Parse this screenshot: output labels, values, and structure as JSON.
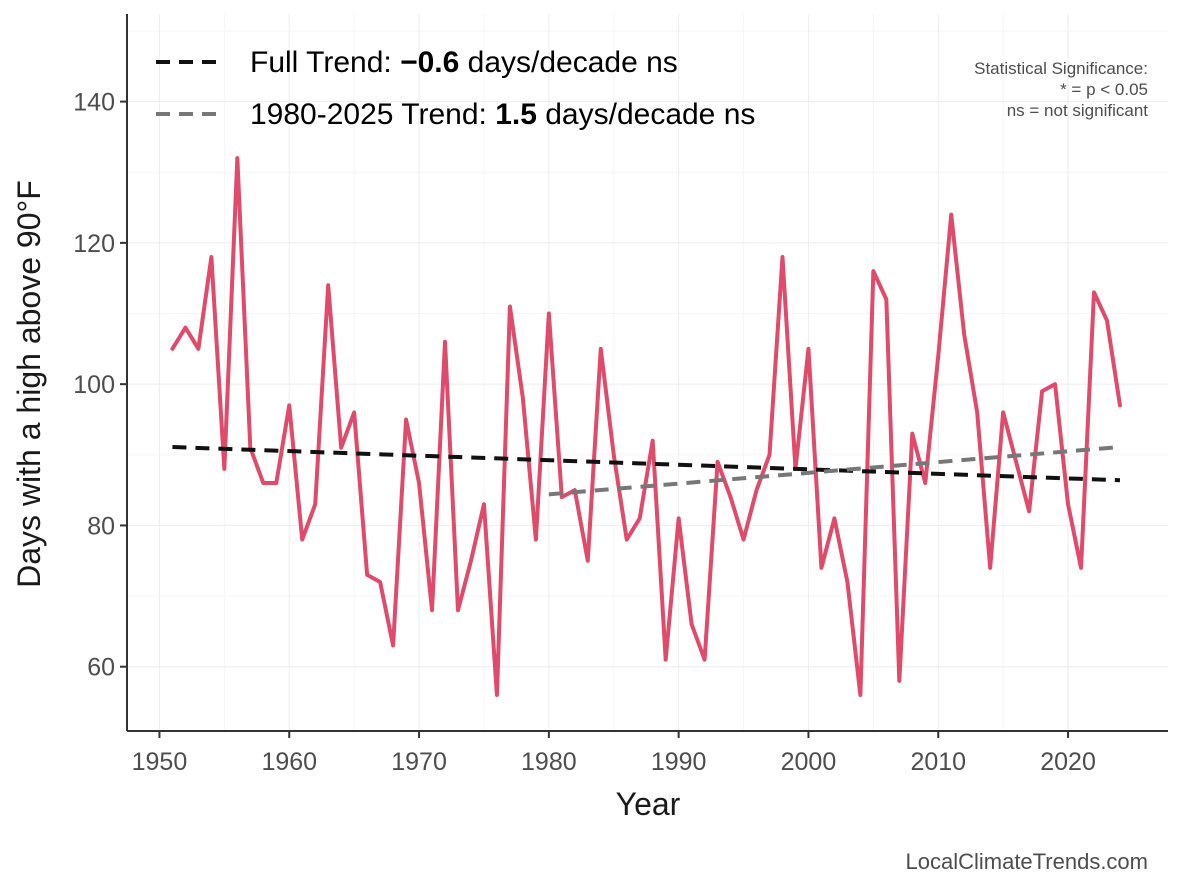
{
  "chart_data": {
    "type": "line",
    "xlabel": "Year",
    "ylabel": "Days with a high above 90°F",
    "xlim": [
      1947.5,
      2027.7
    ],
    "ylim": [
      50.9,
      152.4
    ],
    "x_ticks": [
      1950,
      1960,
      1970,
      1980,
      1990,
      2000,
      2010,
      2020
    ],
    "y_ticks": [
      60,
      80,
      100,
      120,
      140
    ],
    "grid": true,
    "legend_position": "top-left",
    "series": [
      {
        "color": "#e04a6b",
        "x": [
          1951,
          1952,
          1953,
          1954,
          1955,
          1956,
          1957,
          1958,
          1959,
          1960,
          1961,
          1962,
          1963,
          1964,
          1965,
          1966,
          1967,
          1968,
          1969,
          1970,
          1971,
          1972,
          1973,
          1974,
          1975,
          1976,
          1977,
          1978,
          1979,
          1980,
          1981,
          1982,
          1983,
          1984,
          1985,
          1986,
          1987,
          1988,
          1989,
          1990,
          1991,
          1992,
          1993,
          1994,
          1995,
          1996,
          1997,
          1998,
          1999,
          2000,
          2001,
          2002,
          2003,
          2004,
          2005,
          2006,
          2007,
          2008,
          2009,
          2010,
          2011,
          2012,
          2013,
          2014,
          2015,
          2016,
          2017,
          2018,
          2019,
          2020,
          2021,
          2022,
          2023,
          2024
        ],
        "values": [
          105,
          108,
          105,
          118,
          88,
          132,
          91,
          86,
          86,
          97,
          78,
          83,
          114,
          91,
          96,
          73,
          72,
          63,
          95,
          86,
          68,
          106,
          68,
          75,
          83,
          56,
          111,
          98,
          78,
          110,
          84,
          85,
          75,
          105,
          90,
          78,
          81,
          92,
          61,
          81,
          66,
          61,
          89,
          84,
          78,
          85,
          90,
          118,
          88,
          105,
          74,
          81,
          72,
          56,
          116,
          112,
          58,
          93,
          86,
          104,
          124,
          107,
          96,
          74,
          96,
          89,
          82,
          99,
          100,
          83,
          74,
          113,
          109,
          97
        ]
      },
      {
        "name": "Full Trend",
        "color": "#111111",
        "dashed": true,
        "x": [
          1951,
          2024
        ],
        "values": [
          91.1,
          86.4
        ]
      },
      {
        "name": "1980-2025 Trend",
        "color": "#777777",
        "dashed": true,
        "x": [
          1980,
          2024
        ],
        "values": [
          84.4,
          91.1
        ]
      }
    ],
    "legend": [
      {
        "prefix": "Full Trend: ",
        "value": "−0.6",
        "suffix": " days/decade ns",
        "color": "#111111"
      },
      {
        "prefix": "1980-2025 Trend: ",
        "value": "1.5",
        "suffix": " days/decade ns",
        "color": "#777777"
      }
    ],
    "annotations": {
      "significance": [
        "Statistical Significance:",
        "* = p < 0.05",
        "ns = not significant"
      ],
      "credit": "LocalClimateTrends.com"
    }
  }
}
